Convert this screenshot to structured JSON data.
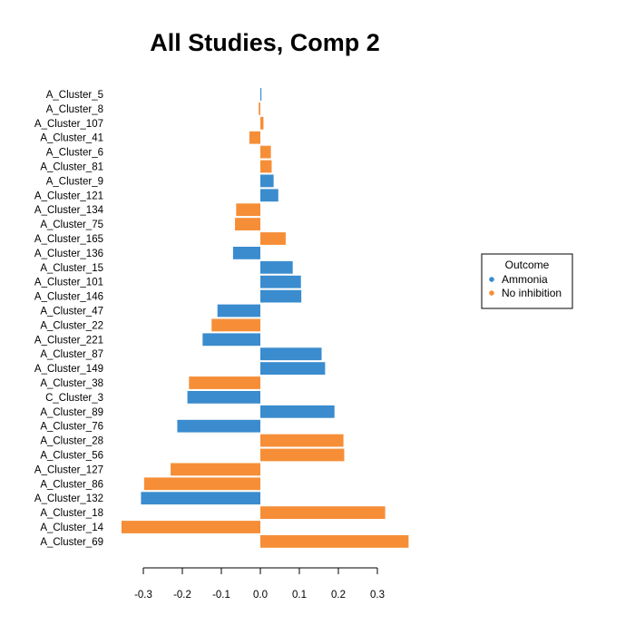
{
  "chart_data": {
    "type": "bar",
    "orientation": "horizontal",
    "title": "All Studies, Comp 2",
    "xlabel": "",
    "ylabel": "",
    "xlim": [
      -0.35,
      0.38
    ],
    "x_ticks": [
      -0.3,
      -0.2,
      -0.1,
      0.0,
      0.1,
      0.2,
      0.3
    ],
    "x_tick_labels": [
      "-0.3",
      "-0.2",
      "-0.1",
      "0.0",
      "0.1",
      "0.2",
      "0.3"
    ],
    "grid": false,
    "legend": {
      "title": "Outcome",
      "position": "right",
      "entries": [
        {
          "name": "Ammonia",
          "color": "#3A8CCE"
        },
        {
          "name": "No inhibition",
          "color": "#F68E37"
        }
      ]
    },
    "colors": {
      "Ammonia": "#3A8CCE",
      "No inhibition": "#F68E37"
    },
    "bars": [
      {
        "label": "A_Cluster_5",
        "value": 0.002,
        "outcome": "Ammonia"
      },
      {
        "label": "A_Cluster_8",
        "value": -0.004,
        "outcome": "No inhibition"
      },
      {
        "label": "A_Cluster_107",
        "value": 0.008,
        "outcome": "No inhibition"
      },
      {
        "label": "A_Cluster_41",
        "value": -0.028,
        "outcome": "No inhibition"
      },
      {
        "label": "A_Cluster_6",
        "value": 0.027,
        "outcome": "No inhibition"
      },
      {
        "label": "A_Cluster_81",
        "value": 0.029,
        "outcome": "No inhibition"
      },
      {
        "label": "A_Cluster_9",
        "value": 0.034,
        "outcome": "Ammonia"
      },
      {
        "label": "A_Cluster_121",
        "value": 0.046,
        "outcome": "Ammonia"
      },
      {
        "label": "A_Cluster_134",
        "value": -0.062,
        "outcome": "No inhibition"
      },
      {
        "label": "A_Cluster_75",
        "value": -0.065,
        "outcome": "No inhibition"
      },
      {
        "label": "A_Cluster_165",
        "value": 0.065,
        "outcome": "No inhibition"
      },
      {
        "label": "A_Cluster_136",
        "value": -0.07,
        "outcome": "Ammonia"
      },
      {
        "label": "A_Cluster_15",
        "value": 0.083,
        "outcome": "Ammonia"
      },
      {
        "label": "A_Cluster_101",
        "value": 0.104,
        "outcome": "Ammonia"
      },
      {
        "label": "A_Cluster_146",
        "value": 0.105,
        "outcome": "Ammonia"
      },
      {
        "label": "A_Cluster_47",
        "value": -0.11,
        "outcome": "Ammonia"
      },
      {
        "label": "A_Cluster_22",
        "value": -0.125,
        "outcome": "No inhibition"
      },
      {
        "label": "A_Cluster_221",
        "value": -0.148,
        "outcome": "Ammonia"
      },
      {
        "label": "A_Cluster_87",
        "value": 0.157,
        "outcome": "Ammonia"
      },
      {
        "label": "A_Cluster_149",
        "value": 0.166,
        "outcome": "Ammonia"
      },
      {
        "label": "A_Cluster_38",
        "value": -0.183,
        "outcome": "No inhibition"
      },
      {
        "label": "C_Cluster_3",
        "value": -0.187,
        "outcome": "Ammonia"
      },
      {
        "label": "A_Cluster_89",
        "value": 0.19,
        "outcome": "Ammonia"
      },
      {
        "label": "A_Cluster_76",
        "value": -0.213,
        "outcome": "Ammonia"
      },
      {
        "label": "A_Cluster_28",
        "value": 0.213,
        "outcome": "No inhibition"
      },
      {
        "label": "A_Cluster_56",
        "value": 0.215,
        "outcome": "No inhibition"
      },
      {
        "label": "A_Cluster_127",
        "value": -0.23,
        "outcome": "No inhibition"
      },
      {
        "label": "A_Cluster_86",
        "value": -0.298,
        "outcome": "No inhibition"
      },
      {
        "label": "A_Cluster_132",
        "value": -0.306,
        "outcome": "Ammonia"
      },
      {
        "label": "A_Cluster_18",
        "value": 0.32,
        "outcome": "No inhibition"
      },
      {
        "label": "A_Cluster_14",
        "value": -0.356,
        "outcome": "No inhibition"
      },
      {
        "label": "A_Cluster_69",
        "value": 0.38,
        "outcome": "No inhibition"
      }
    ]
  }
}
